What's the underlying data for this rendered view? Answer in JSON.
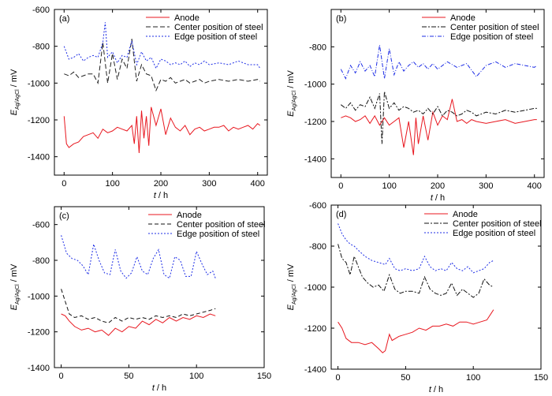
{
  "figure": {
    "x_axis_label": "t / h",
    "y_axis_label": "E_Ag/AgCl / mV"
  },
  "chart_data": [
    {
      "panel": "(a)",
      "type": "line",
      "xlim": [
        -20,
        420
      ],
      "ylim": [
        -1500,
        -600
      ],
      "xticks": [
        0,
        100,
        200,
        300,
        400
      ],
      "yticks": [
        -1400,
        -1200,
        -1000,
        -800,
        -600
      ],
      "xlabel": "t / h",
      "ylabel": "E_Ag/AgCl / mV",
      "legend": "top-right",
      "series": [
        {
          "name": "Anode",
          "color": "#e8171f",
          "dash": "solid",
          "x": [
            0,
            5,
            10,
            20,
            30,
            40,
            50,
            60,
            70,
            80,
            90,
            100,
            110,
            120,
            130,
            140,
            145,
            150,
            155,
            160,
            165,
            170,
            175,
            180,
            190,
            200,
            210,
            220,
            230,
            240,
            250,
            260,
            270,
            280,
            290,
            300,
            310,
            320,
            330,
            340,
            350,
            360,
            370,
            380,
            390,
            400,
            405
          ],
          "y": [
            -1180,
            -1330,
            -1350,
            -1330,
            -1320,
            -1290,
            -1280,
            -1270,
            -1300,
            -1250,
            -1270,
            -1260,
            -1240,
            -1250,
            -1260,
            -1230,
            -1330,
            -1180,
            -1380,
            -1150,
            -1300,
            -1180,
            -1340,
            -1130,
            -1230,
            -1140,
            -1280,
            -1190,
            -1240,
            -1260,
            -1230,
            -1280,
            -1250,
            -1240,
            -1260,
            -1250,
            -1240,
            -1240,
            -1230,
            -1260,
            -1240,
            -1250,
            -1240,
            -1230,
            -1250,
            -1220,
            -1230
          ]
        },
        {
          "name": "Center position of steel",
          "color": "#222222",
          "dash": "6 3",
          "x": [
            0,
            10,
            20,
            30,
            40,
            50,
            60,
            70,
            80,
            90,
            100,
            110,
            120,
            130,
            140,
            145,
            150,
            160,
            170,
            180,
            190,
            200,
            210,
            220,
            230,
            240,
            250,
            260,
            270,
            280,
            290,
            300,
            320,
            340,
            360,
            380,
            400,
            405
          ],
          "y": [
            -950,
            -960,
            -940,
            -970,
            -960,
            -950,
            -950,
            -1000,
            -780,
            -1000,
            -840,
            -980,
            -870,
            -920,
            -760,
            -880,
            -990,
            -900,
            -950,
            -960,
            -1040,
            -980,
            -990,
            -970,
            -1000,
            -990,
            -980,
            -1000,
            -990,
            -980,
            -1000,
            -990,
            -980,
            -990,
            -980,
            -990,
            -980,
            -990
          ]
        },
        {
          "name": "Edge position of steel",
          "color": "#1e2ee6",
          "dash": "2 2",
          "x": [
            0,
            10,
            20,
            30,
            40,
            50,
            60,
            70,
            80,
            85,
            90,
            100,
            110,
            120,
            130,
            140,
            150,
            160,
            170,
            180,
            190,
            200,
            210,
            220,
            230,
            240,
            250,
            260,
            270,
            280,
            290,
            300,
            320,
            340,
            360,
            380,
            400,
            405
          ],
          "y": [
            -800,
            -870,
            -860,
            -840,
            -880,
            -860,
            -850,
            -860,
            -780,
            -670,
            -860,
            -830,
            -890,
            -850,
            -860,
            -770,
            -900,
            -830,
            -880,
            -860,
            -920,
            -870,
            -880,
            -900,
            -890,
            -900,
            -880,
            -910,
            -890,
            -900,
            -880,
            -900,
            -890,
            -900,
            -880,
            -900,
            -900,
            -920
          ]
        }
      ]
    },
    {
      "panel": "(b)",
      "type": "line",
      "xlim": [
        -20,
        420
      ],
      "ylim": [
        -1500,
        -600
      ],
      "xticks": [
        0,
        100,
        200,
        300,
        400
      ],
      "yticks": [
        -1400,
        -1200,
        -1000,
        -800
      ],
      "xlabel": "t / h",
      "ylabel": "E_Ag/AgCl / mV",
      "legend": "top-right",
      "series": [
        {
          "name": "Anode",
          "color": "#e8171f",
          "dash": "solid",
          "x": [
            0,
            10,
            20,
            30,
            40,
            50,
            60,
            70,
            80,
            90,
            100,
            110,
            120,
            130,
            140,
            150,
            155,
            160,
            170,
            180,
            190,
            200,
            210,
            220,
            230,
            240,
            250,
            260,
            270,
            280,
            300,
            320,
            340,
            360,
            380,
            400,
            405
          ],
          "y": [
            -1180,
            -1170,
            -1180,
            -1200,
            -1190,
            -1170,
            -1210,
            -1170,
            -1220,
            -1180,
            -1220,
            -1200,
            -1180,
            -1340,
            -1200,
            -1380,
            -1180,
            -1320,
            -1170,
            -1300,
            -1150,
            -1220,
            -1170,
            -1190,
            -1080,
            -1200,
            -1190,
            -1210,
            -1190,
            -1200,
            -1210,
            -1200,
            -1190,
            -1210,
            -1200,
            -1190,
            -1190
          ]
        },
        {
          "name": "Center position of steel",
          "color": "#111111",
          "dash": "6 2 2 2",
          "x": [
            0,
            10,
            20,
            30,
            40,
            50,
            60,
            70,
            80,
            85,
            90,
            100,
            110,
            120,
            130,
            140,
            150,
            160,
            170,
            180,
            190,
            200,
            210,
            220,
            230,
            240,
            250,
            260,
            270,
            280,
            300,
            320,
            340,
            360,
            380,
            400,
            405
          ],
          "y": [
            -1110,
            -1130,
            -1100,
            -1140,
            -1110,
            -1120,
            -1070,
            -1130,
            -1050,
            -1320,
            -1040,
            -1130,
            -1100,
            -1140,
            -1120,
            -1130,
            -1150,
            -1140,
            -1160,
            -1130,
            -1160,
            -1120,
            -1170,
            -1140,
            -1150,
            -1170,
            -1160,
            -1140,
            -1150,
            -1170,
            -1150,
            -1160,
            -1140,
            -1150,
            -1140,
            -1130,
            -1130
          ]
        },
        {
          "name": "Edge position of steel",
          "color": "#1e2ee6",
          "dash": "5 2 1 2",
          "x": [
            0,
            10,
            20,
            30,
            40,
            50,
            60,
            70,
            80,
            90,
            100,
            110,
            120,
            130,
            140,
            150,
            160,
            170,
            180,
            190,
            200,
            220,
            240,
            260,
            280,
            300,
            320,
            340,
            360,
            380,
            400,
            405
          ],
          "y": [
            -920,
            -970,
            -900,
            -940,
            -880,
            -930,
            -900,
            -960,
            -790,
            -970,
            -810,
            -950,
            -880,
            -930,
            -900,
            -880,
            -910,
            -890,
            -920,
            -890,
            -920,
            -880,
            -910,
            -890,
            -960,
            -900,
            -880,
            -910,
            -890,
            -900,
            -910,
            -900
          ]
        }
      ]
    },
    {
      "panel": "(c)",
      "type": "line",
      "xlim": [
        -5,
        150
      ],
      "ylim": [
        -1400,
        -500
      ],
      "xticks": [
        0,
        50,
        100,
        150
      ],
      "yticks": [
        -1400,
        -1200,
        -1000,
        -800,
        -600
      ],
      "xlabel": "t / h",
      "ylabel": "E_Ag/AgCl / mV",
      "legend": "top-center",
      "series": [
        {
          "name": "Anode",
          "color": "#e8171f",
          "dash": "solid",
          "x": [
            0,
            3,
            6,
            10,
            15,
            20,
            25,
            30,
            35,
            40,
            45,
            50,
            55,
            60,
            65,
            70,
            75,
            80,
            85,
            90,
            95,
            100,
            105,
            110,
            114
          ],
          "y": [
            -1100,
            -1110,
            -1140,
            -1170,
            -1190,
            -1180,
            -1200,
            -1190,
            -1220,
            -1180,
            -1200,
            -1170,
            -1180,
            -1140,
            -1160,
            -1130,
            -1150,
            -1120,
            -1140,
            -1120,
            -1130,
            -1110,
            -1120,
            -1100,
            -1110
          ]
        },
        {
          "name": "Center position of steel",
          "color": "#111111",
          "dash": "5 3",
          "x": [
            0,
            3,
            6,
            10,
            15,
            20,
            25,
            30,
            35,
            40,
            45,
            50,
            55,
            60,
            65,
            70,
            75,
            80,
            85,
            90,
            95,
            100,
            105,
            110,
            114
          ],
          "y": [
            -960,
            -1030,
            -1100,
            -1120,
            -1110,
            -1130,
            -1120,
            -1140,
            -1150,
            -1120,
            -1140,
            -1120,
            -1130,
            -1120,
            -1130,
            -1110,
            -1120,
            -1110,
            -1120,
            -1100,
            -1110,
            -1100,
            -1090,
            -1080,
            -1070
          ]
        },
        {
          "name": "Edge position of steel",
          "color": "#1e2ee6",
          "dash": "2 2",
          "x": [
            0,
            4,
            8,
            12,
            16,
            20,
            24,
            28,
            32,
            36,
            40,
            44,
            48,
            52,
            56,
            60,
            64,
            68,
            72,
            76,
            80,
            84,
            88,
            92,
            96,
            100,
            104,
            108,
            112,
            114
          ],
          "y": [
            -660,
            -760,
            -790,
            -800,
            -830,
            -880,
            -710,
            -800,
            -870,
            -880,
            -740,
            -860,
            -900,
            -870,
            -780,
            -860,
            -880,
            -790,
            -740,
            -880,
            -900,
            -780,
            -800,
            -890,
            -890,
            -750,
            -820,
            -880,
            -860,
            -900
          ]
        }
      ]
    },
    {
      "panel": "(d)",
      "type": "line",
      "xlim": [
        -5,
        150
      ],
      "ylim": [
        -1400,
        -600
      ],
      "xticks": [
        0,
        50,
        100,
        150
      ],
      "yticks": [
        -1400,
        -1200,
        -1000,
        -800,
        -600
      ],
      "xlabel": "t / h",
      "ylabel": "E_Ag/AgCl / mV",
      "legend": "top-center",
      "series": [
        {
          "name": "Anode",
          "color": "#e8171f",
          "dash": "solid",
          "x": [
            0,
            3,
            6,
            10,
            15,
            20,
            25,
            30,
            33,
            35,
            38,
            40,
            45,
            50,
            55,
            60,
            65,
            70,
            75,
            80,
            85,
            90,
            95,
            100,
            105,
            110,
            113,
            115
          ],
          "y": [
            -1170,
            -1200,
            -1250,
            -1270,
            -1270,
            -1280,
            -1270,
            -1300,
            -1320,
            -1310,
            -1230,
            -1260,
            -1240,
            -1230,
            -1220,
            -1200,
            -1210,
            -1190,
            -1190,
            -1180,
            -1190,
            -1170,
            -1170,
            -1180,
            -1170,
            -1160,
            -1130,
            -1110
          ]
        },
        {
          "name": "Center position of steel",
          "color": "#111111",
          "dash": "6 2 2 2",
          "x": [
            0,
            3,
            6,
            9,
            12,
            15,
            18,
            22,
            26,
            30,
            34,
            38,
            42,
            46,
            50,
            55,
            60,
            64,
            68,
            72,
            76,
            80,
            84,
            88,
            92,
            96,
            100,
            104,
            108,
            112,
            115
          ],
          "y": [
            -790,
            -860,
            -880,
            -940,
            -850,
            -900,
            -950,
            -980,
            -1000,
            -990,
            -1020,
            -940,
            -1010,
            -1030,
            -1020,
            -1020,
            -1030,
            -950,
            -1010,
            -1030,
            -1040,
            -1030,
            -980,
            -1040,
            -1010,
            -1030,
            -1050,
            -1030,
            -960,
            -990,
            -1000
          ]
        },
        {
          "name": "Edge position of steel",
          "color": "#1e2ee6",
          "dash": "2 2",
          "x": [
            0,
            3,
            6,
            9,
            12,
            15,
            20,
            25,
            30,
            35,
            38,
            42,
            46,
            50,
            55,
            60,
            64,
            68,
            72,
            76,
            80,
            84,
            88,
            92,
            96,
            100,
            104,
            108,
            112,
            115
          ],
          "y": [
            -690,
            -740,
            -770,
            -790,
            -800,
            -820,
            -850,
            -870,
            -880,
            -890,
            -860,
            -910,
            -920,
            -910,
            -920,
            -910,
            -850,
            -900,
            -920,
            -910,
            -920,
            -880,
            -910,
            -920,
            -900,
            -930,
            -920,
            -910,
            -880,
            -870
          ]
        }
      ]
    }
  ]
}
